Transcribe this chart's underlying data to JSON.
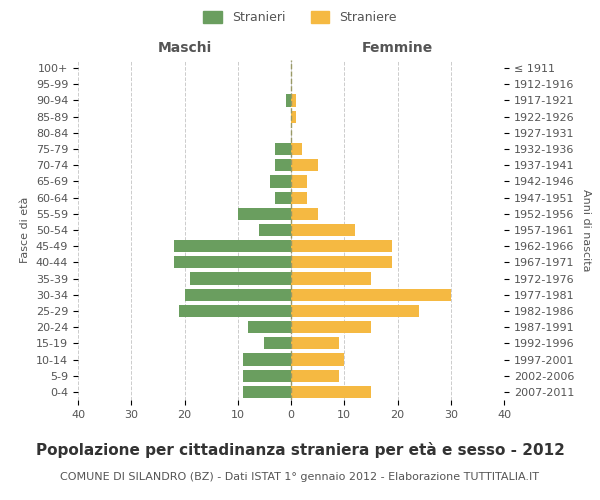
{
  "age_groups": [
    "0-4",
    "5-9",
    "10-14",
    "15-19",
    "20-24",
    "25-29",
    "30-34",
    "35-39",
    "40-44",
    "45-49",
    "50-54",
    "55-59",
    "60-64",
    "65-69",
    "70-74",
    "75-79",
    "80-84",
    "85-89",
    "90-94",
    "95-99",
    "100+"
  ],
  "birth_years": [
    "2007-2011",
    "2002-2006",
    "1997-2001",
    "1992-1996",
    "1987-1991",
    "1982-1986",
    "1977-1981",
    "1972-1976",
    "1967-1971",
    "1962-1966",
    "1957-1961",
    "1952-1956",
    "1947-1951",
    "1942-1946",
    "1937-1941",
    "1932-1936",
    "1927-1931",
    "1922-1926",
    "1917-1921",
    "1912-1916",
    "≤ 1911"
  ],
  "males": [
    9,
    9,
    9,
    5,
    8,
    21,
    20,
    19,
    22,
    22,
    6,
    10,
    3,
    4,
    3,
    3,
    0,
    0,
    1,
    0,
    0
  ],
  "females": [
    15,
    9,
    10,
    9,
    15,
    24,
    30,
    15,
    19,
    19,
    12,
    5,
    3,
    3,
    5,
    2,
    0,
    1,
    1,
    0,
    0
  ],
  "male_color": "#6a9e5f",
  "female_color": "#f5b942",
  "background_color": "#ffffff",
  "grid_color": "#cccccc",
  "center_line_color": "#999966",
  "title": "Popolazione per cittadinanza straniera per età e sesso - 2012",
  "subtitle": "COMUNE DI SILANDRO (BZ) - Dati ISTAT 1° gennaio 2012 - Elaborazione TUTTITALIA.IT",
  "ylabel_left": "Fasce di età",
  "ylabel_right": "Anni di nascita",
  "maschi_label": "Maschi",
  "femmine_label": "Femmine",
  "stranieri_label": "Stranieri",
  "straniere_label": "Straniere",
  "xlim": 40,
  "title_fontsize": 11,
  "subtitle_fontsize": 8,
  "tick_fontsize": 8
}
